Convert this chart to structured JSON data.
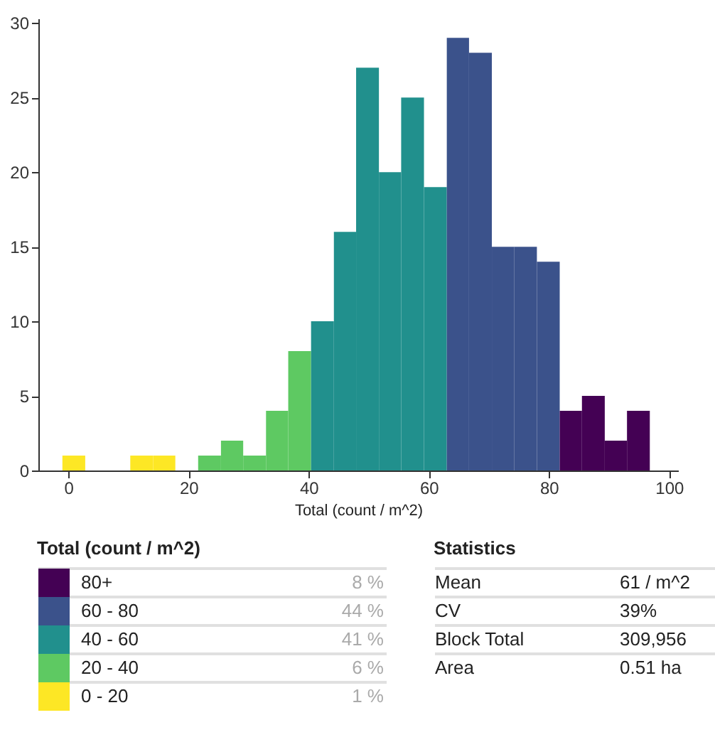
{
  "chart_data": [
    {
      "type": "histogram",
      "xlabel": "Total (count / m^2)",
      "bins": [
        -1.0,
        2.8,
        10.3,
        14.1,
        17.8,
        21.6,
        25.4,
        29.1,
        32.9,
        36.6,
        40.4,
        44.2,
        47.9,
        51.7,
        55.4,
        59.2,
        63.0,
        66.7,
        70.5,
        74.2,
        78.0,
        81.8,
        85.5,
        89.3,
        93.0,
        96.8
      ],
      "values": [
        1,
        0,
        1,
        1,
        0,
        1,
        2,
        1,
        4,
        8,
        10,
        16,
        27,
        20,
        25,
        19,
        29,
        28,
        15,
        15,
        14,
        4,
        5,
        2,
        4
      ],
      "colors": [
        "#fde725",
        "#fde725",
        "#fde725",
        "#fde725",
        "#fde725",
        "#5ec962",
        "#5ec962",
        "#5ec962",
        "#5ec962",
        "#5ec962",
        "#21908d",
        "#21908d",
        "#21908d",
        "#21908d",
        "#21908d",
        "#21908d",
        "#3b528b",
        "#3b528b",
        "#3b528b",
        "#3b528b",
        "#3b528b",
        "#440154",
        "#440154",
        "#440154",
        "#440154"
      ],
      "xlim": [
        -5,
        101.5
      ],
      "xticks": [
        0,
        20,
        40,
        60,
        80,
        100
      ],
      "ylim": [
        0,
        30.3
      ],
      "yticks": [
        0,
        5,
        10,
        15,
        20,
        25,
        30
      ],
      "grid": false
    },
    {
      "type": "other",
      "legend_title": "Total (count / m^2)",
      "categories": [
        "80+",
        "60 - 80",
        "40 - 60",
        "20 - 40",
        "0 - 20"
      ],
      "colors": [
        "#440154",
        "#3b528b",
        "#21908d",
        "#5ec962",
        "#fde725"
      ],
      "value_labels": [
        "8 %",
        "44 %",
        "41 %",
        "6 %",
        "1 %"
      ]
    },
    {
      "type": "other",
      "title": "Statistics",
      "categories": [
        "Mean",
        "CV",
        "Block Total",
        "Area"
      ],
      "value_labels": [
        "61 / m^2",
        "39%",
        "309,956",
        "0.51 ha"
      ]
    }
  ]
}
